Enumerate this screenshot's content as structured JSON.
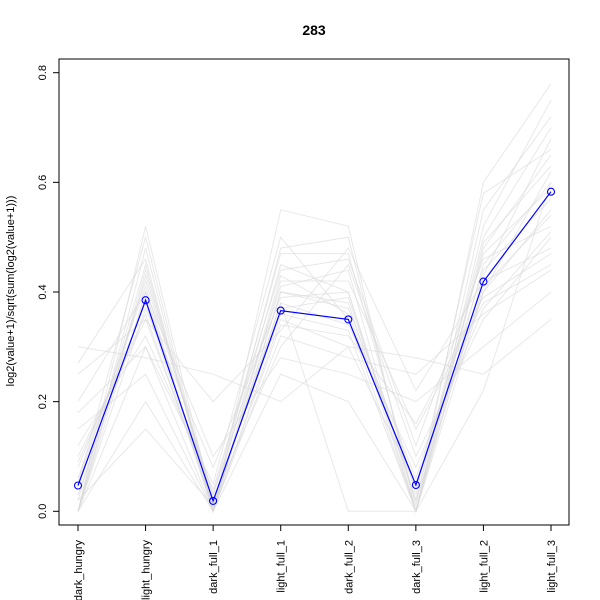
{
  "chart_data": {
    "type": "line",
    "title": "283",
    "xlabel": "",
    "ylabel": "log2(value+1)/sqrt(sum(log2(value+1)))",
    "categories": [
      "dark_hungry",
      "light_hungry",
      "dark_full_1",
      "light_full_1",
      "dark_full_2",
      "dark_full_3",
      "light_full_2",
      "light_full_3"
    ],
    "yticks": [
      "0.0",
      "0.2",
      "0.4",
      "0.6",
      "0.8"
    ],
    "ylim": [
      -0.025,
      0.825
    ],
    "grid": false,
    "highlight": {
      "color": "#0000ff",
      "values": [
        0.047,
        0.385,
        0.019,
        0.366,
        0.35,
        0.048,
        0.419,
        0.583
      ]
    },
    "background_color": "#d9d9d9",
    "background_series": [
      [
        0.0,
        0.4,
        0.0,
        0.4,
        0.38,
        0.0,
        0.45,
        0.6
      ],
      [
        0.02,
        0.45,
        0.01,
        0.45,
        0.4,
        0.02,
        0.5,
        0.7
      ],
      [
        0.05,
        0.5,
        0.0,
        0.35,
        0.3,
        0.05,
        0.4,
        0.55
      ],
      [
        0.1,
        0.35,
        0.02,
        0.3,
        0.45,
        0.1,
        0.35,
        0.5
      ],
      [
        0.0,
        0.3,
        0.05,
        0.5,
        0.35,
        0.0,
        0.48,
        0.65
      ],
      [
        0.15,
        0.25,
        0.0,
        0.42,
        0.42,
        0.15,
        0.38,
        0.45
      ],
      [
        0.0,
        0.52,
        0.01,
        0.38,
        0.0,
        0.0,
        0.55,
        0.72
      ],
      [
        0.2,
        0.4,
        0.1,
        0.28,
        0.25,
        0.2,
        0.3,
        0.4
      ],
      [
        0.25,
        0.35,
        0.2,
        0.33,
        0.48,
        0.22,
        0.42,
        0.48
      ],
      [
        0.3,
        0.28,
        0.25,
        0.2,
        0.3,
        0.28,
        0.25,
        0.35
      ],
      [
        0.0,
        0.48,
        0.0,
        0.55,
        0.52,
        0.0,
        0.52,
        0.75
      ],
      [
        0.05,
        0.42,
        0.03,
        0.47,
        0.47,
        0.03,
        0.58,
        0.66
      ],
      [
        0.08,
        0.38,
        0.0,
        0.4,
        0.37,
        0.06,
        0.44,
        0.57
      ],
      [
        0.0,
        0.44,
        0.02,
        0.36,
        0.33,
        0.0,
        0.4,
        0.62
      ],
      [
        0.12,
        0.32,
        0.04,
        0.44,
        0.46,
        0.12,
        0.46,
        0.52
      ],
      [
        0.0,
        0.2,
        0.0,
        0.25,
        0.2,
        0.0,
        0.22,
        0.6
      ],
      [
        0.02,
        0.15,
        0.01,
        0.48,
        0.5,
        0.01,
        0.6,
        0.78
      ],
      [
        0.27,
        0.46,
        0.0,
        0.32,
        0.28,
        0.25,
        0.36,
        0.44
      ],
      [
        0.0,
        0.37,
        0.08,
        0.39,
        0.4,
        0.0,
        0.43,
        0.68
      ],
      [
        0.06,
        0.41,
        0.0,
        0.43,
        0.36,
        0.04,
        0.47,
        0.59
      ],
      [
        0.03,
        0.39,
        0.02,
        0.37,
        0.39,
        0.02,
        0.41,
        0.54
      ],
      [
        0.18,
        0.3,
        0.0,
        0.34,
        0.32,
        0.16,
        0.39,
        0.47
      ],
      [
        0.0,
        0.43,
        0.03,
        0.41,
        0.44,
        0.0,
        0.49,
        0.63
      ],
      [
        0.09,
        0.36,
        0.01,
        0.38,
        0.34,
        0.08,
        0.37,
        0.51
      ]
    ]
  }
}
